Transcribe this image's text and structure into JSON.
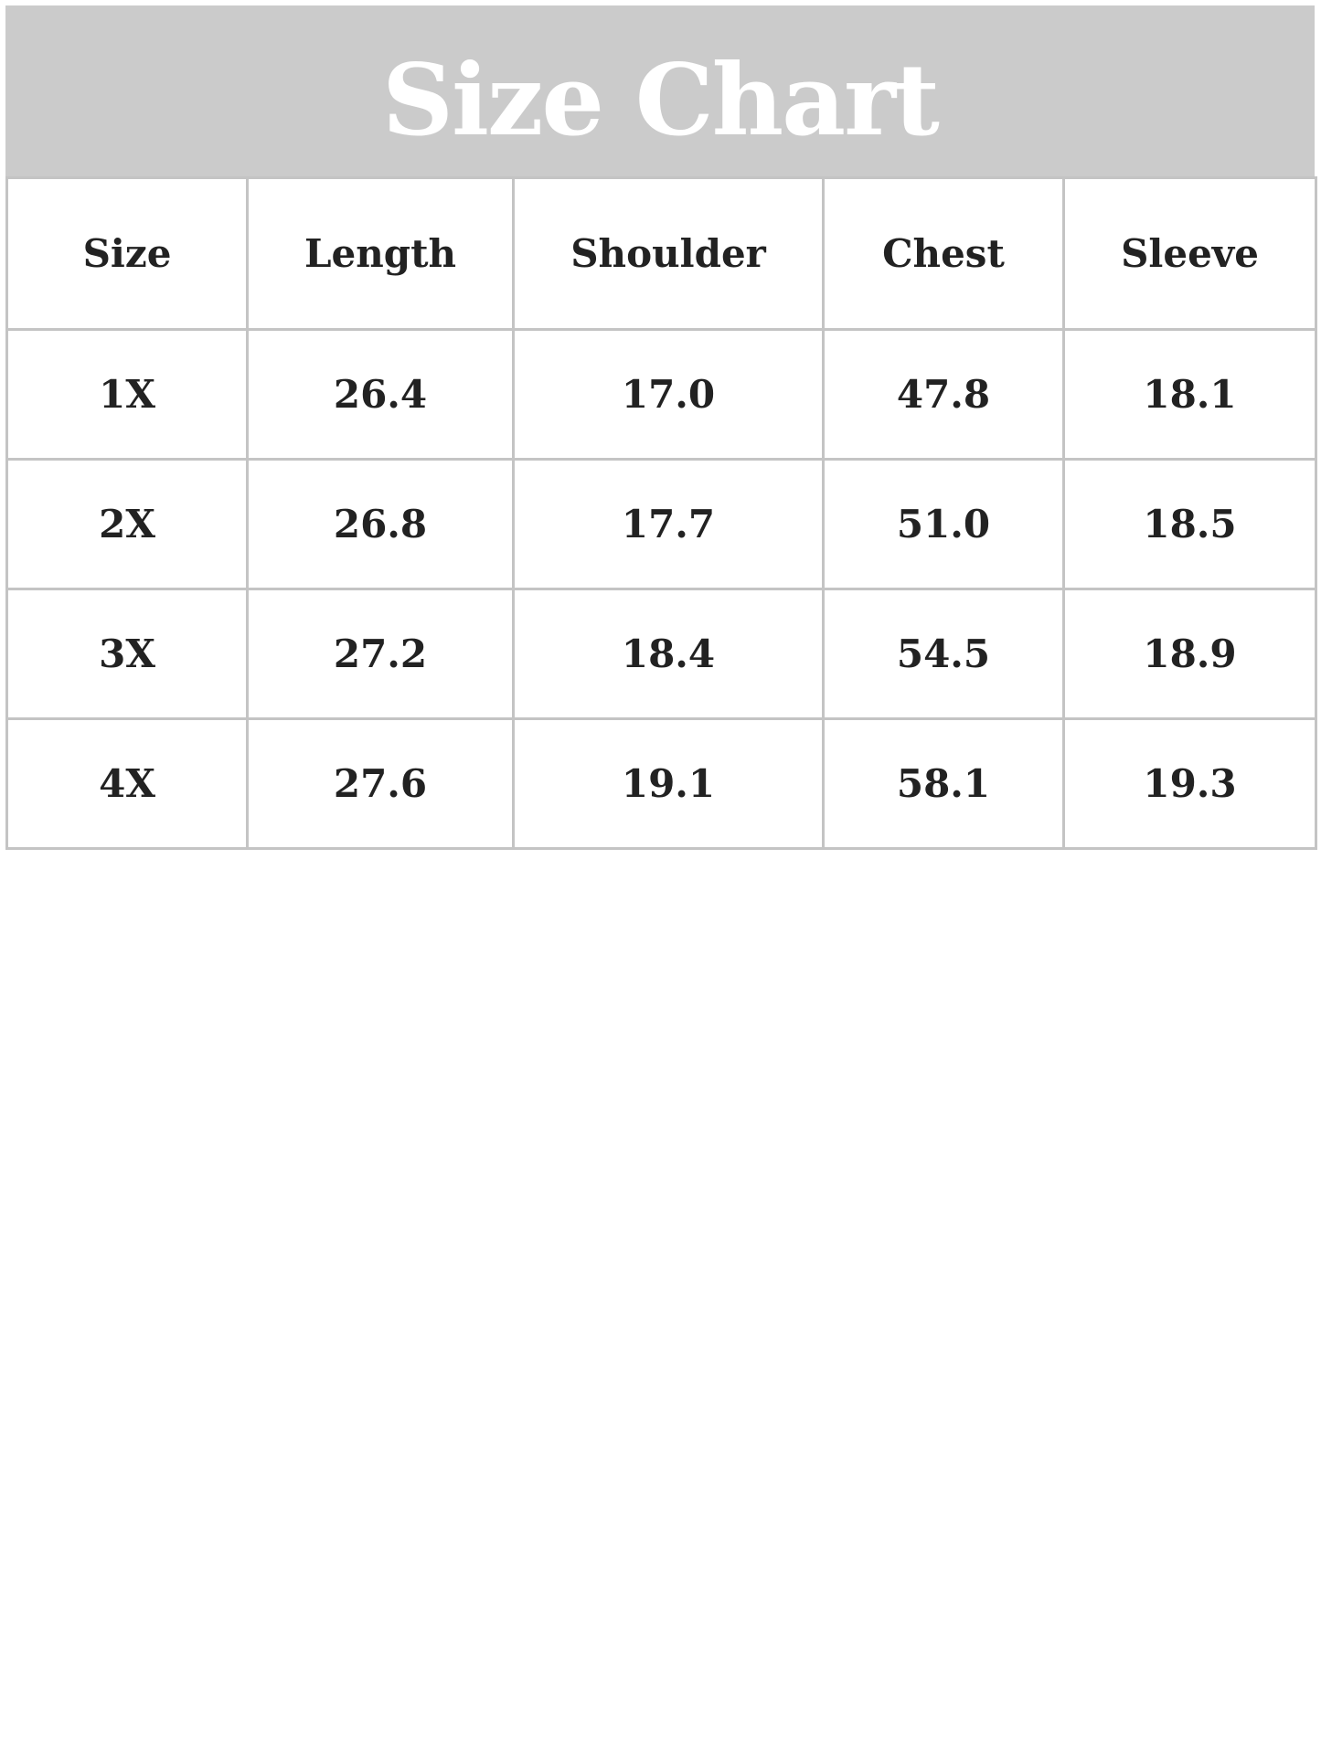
{
  "title": "Size Chart",
  "colors": {
    "banner": "#cbcbcb",
    "border": "#c4c4c4",
    "text": "#222222",
    "title": "#ffffff"
  },
  "table": {
    "headers": [
      "Size",
      "Length",
      "Shoulder",
      "Chest",
      "Sleeve"
    ],
    "rows": [
      [
        "1X",
        "26.4",
        "17.0",
        "47.8",
        "18.1"
      ],
      [
        "2X",
        "26.8",
        "17.7",
        "51.0",
        "18.5"
      ],
      [
        "3X",
        "27.2",
        "18.4",
        "54.5",
        "18.9"
      ],
      [
        "4X",
        "27.6",
        "19.1",
        "58.1",
        "19.3"
      ]
    ]
  }
}
